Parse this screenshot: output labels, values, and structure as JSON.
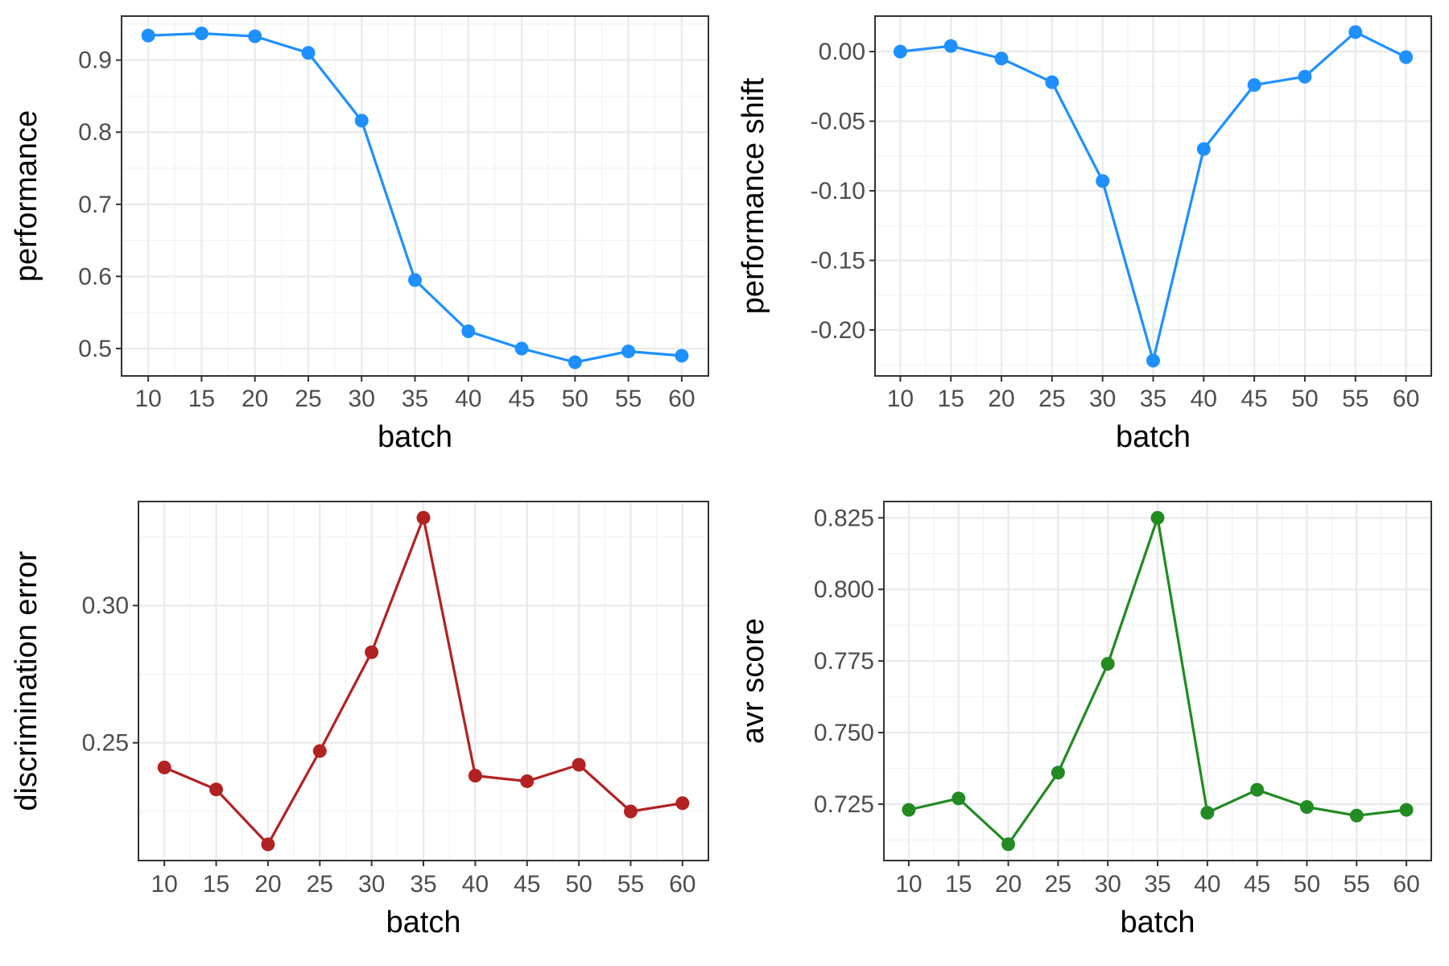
{
  "chart_data": [
    {
      "type": "line",
      "xlabel": "batch",
      "ylabel": "performance",
      "x": [
        10,
        15,
        20,
        25,
        30,
        35,
        40,
        45,
        50,
        55,
        60
      ],
      "series": [
        {
          "values": [
            0.934,
            0.937,
            0.933,
            0.91,
            0.816,
            0.595,
            0.524,
            0.5,
            0.481,
            0.496,
            0.49
          ]
        }
      ],
      "xlim": [
        7.5,
        62.5
      ],
      "ylim": [
        0.462,
        0.961
      ],
      "yticks": [
        0.5,
        0.6,
        0.7,
        0.8,
        0.9
      ],
      "ytick_labels": [
        "0.5",
        "0.6",
        "0.7",
        "0.8",
        "0.9"
      ],
      "color": "#1E90FF",
      "grid": true,
      "legend": "none"
    },
    {
      "type": "line",
      "xlabel": "batch",
      "ylabel": "performance shift",
      "x": [
        10,
        15,
        20,
        25,
        30,
        35,
        40,
        45,
        50,
        55,
        60
      ],
      "series": [
        {
          "values": [
            0.0,
            0.004,
            -0.005,
            -0.022,
            -0.093,
            -0.222,
            -0.07,
            -0.024,
            -0.018,
            0.014,
            -0.004
          ]
        }
      ],
      "xlim": [
        7.5,
        62.5
      ],
      "ylim": [
        -0.233,
        0.0255
      ],
      "yticks": [
        0.0,
        -0.05,
        -0.1,
        -0.15,
        -0.2
      ],
      "ytick_labels": [
        "0.00",
        "-0.05",
        "-0.10",
        "-0.15",
        "-0.20"
      ],
      "color": "#1E90FF",
      "grid": true,
      "legend": "none"
    },
    {
      "type": "line",
      "xlabel": "batch",
      "ylabel": "discrimination error",
      "x": [
        10,
        15,
        20,
        25,
        30,
        35,
        40,
        45,
        50,
        55,
        60
      ],
      "series": [
        {
          "values": [
            0.241,
            0.233,
            0.213,
            0.247,
            0.283,
            0.332,
            0.238,
            0.236,
            0.242,
            0.225,
            0.228
          ]
        }
      ],
      "xlim": [
        7.5,
        62.5
      ],
      "ylim": [
        0.2071,
        0.3379
      ],
      "yticks": [
        0.25,
        0.3
      ],
      "ytick_labels": [
        "0.25",
        "0.30"
      ],
      "color": "#B22222",
      "grid": true,
      "legend": "none"
    },
    {
      "type": "line",
      "xlabel": "batch",
      "ylabel": "avr score",
      "x": [
        10,
        15,
        20,
        25,
        30,
        35,
        40,
        45,
        50,
        55,
        60
      ],
      "series": [
        {
          "values": [
            0.723,
            0.727,
            0.711,
            0.736,
            0.774,
            0.825,
            0.722,
            0.73,
            0.724,
            0.721,
            0.723
          ]
        }
      ],
      "xlim": [
        7.5,
        62.5
      ],
      "ylim": [
        0.7053,
        0.8307
      ],
      "yticks": [
        0.725,
        0.75,
        0.775,
        0.8,
        0.825
      ],
      "ytick_labels": [
        "0.725",
        "0.750",
        "0.775",
        "0.800",
        "0.825"
      ],
      "color": "#228B22",
      "grid": true,
      "legend": "none"
    }
  ]
}
